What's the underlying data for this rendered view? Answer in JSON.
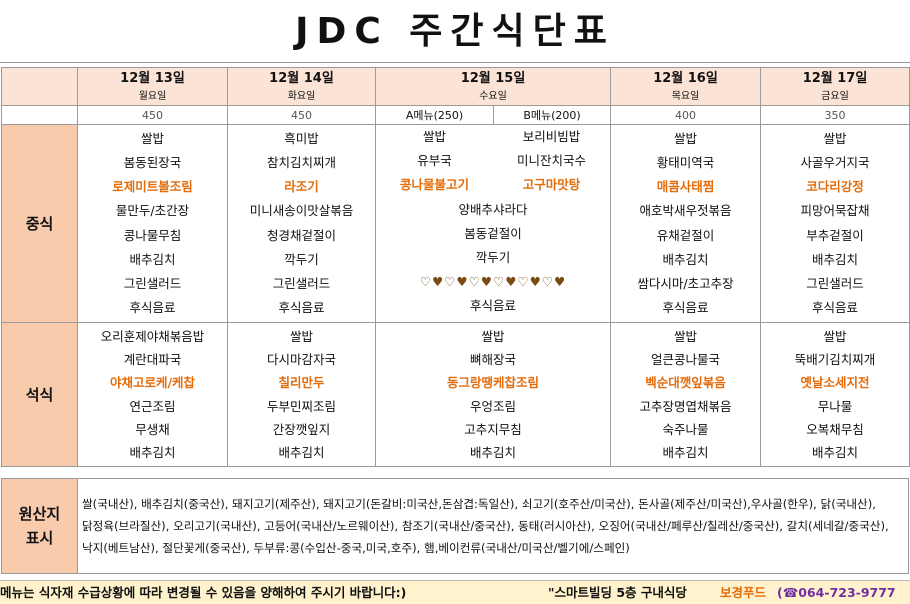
{
  "title": "JDC 주간식단표",
  "days": [
    {
      "date": "12월 13일",
      "dow": "월요일",
      "count": "450"
    },
    {
      "date": "12월 14일",
      "dow": "화요일",
      "count": "450"
    },
    {
      "date": "12월 15일",
      "dow": "수요일",
      "count_a": "A메뉴(250)",
      "count_b": "B메뉴(200)"
    },
    {
      "date": "12월 16일",
      "dow": "목요일",
      "count": "400"
    },
    {
      "date": "12월 17일",
      "dow": "금요일",
      "count": "350"
    }
  ],
  "lunch": {
    "label": "중식",
    "mon": [
      "쌀밥",
      "봄동된장국",
      "로제미트볼조림",
      "물만두/초간장",
      "콩나물무침",
      "배추김치",
      "그린샐러드",
      "후식음료"
    ],
    "tue": [
      "흑미밥",
      "참치김치찌개",
      "라조기",
      "미니새송이맛살볶음",
      "청경채겉절이",
      "깍두기",
      "그린샐러드",
      "후식음료"
    ],
    "wed_a": [
      "쌀밥",
      "유부국",
      "콩나물불고기"
    ],
    "wed_b": [
      "보리비빔밥",
      "미니잔치국수",
      "고구마맛탕"
    ],
    "wed_shared": [
      "양배추샤라다",
      "봄동겉절이",
      "깍두기"
    ],
    "wed_hearts": "♡♥♡♥♡♥♡♥♡♥♡♥",
    "wed_last": "후식음료",
    "thu": [
      "쌀밥",
      "황태미역국",
      "매콤사태찜",
      "애호박새우젓볶음",
      "유채겉절이",
      "배추김치",
      "쌈다시마/초고추장",
      "후식음료"
    ],
    "fri": [
      "쌀밥",
      "사골우거지국",
      "코다리강정",
      "피망어묵잡채",
      "부추겉절이",
      "배추김치",
      "그린샐러드",
      "후식음료"
    ]
  },
  "dinner": {
    "label": "석식",
    "mon": [
      "오리훈제야채볶음밥",
      "계란대파국",
      "야채고로케/케찹",
      "연근조림",
      "무생채",
      "배추김치"
    ],
    "tue": [
      "쌀밥",
      "다시마감자국",
      "칠리만두",
      "두부민찌조림",
      "간장깻잎지",
      "배추김치"
    ],
    "wed": [
      "쌀밥",
      "뼈해장국",
      "동그랑땡케찹조림",
      "우엉조림",
      "고추지무침",
      "배추김치"
    ],
    "thu": [
      "쌀밥",
      "얼큰콩나물국",
      "벡순대깻잎볶음",
      "고추장명엽채볶음",
      "숙주나물",
      "배추김치"
    ],
    "fri": [
      "쌀밥",
      "뚝배기김치찌개",
      "옛날소세지전",
      "무나물",
      "오복채무침",
      "배추김치"
    ]
  },
  "origin": {
    "label_1": "원산지",
    "label_2": "표시",
    "text": "쌀(국내산), 배추김치(중국산), 돼지고기(제주산), 돼지고기(돈갈비:미국산,돈삼겹:독일산), 쇠고기(호주산/미국산), 돈사골(제주산/미국산),우사골(한우), 닭(국내산), 닭정육(브라질산), 오리고기(국내산), 고등어(국내산/노르웨이산), 참조기(국내산/중국산), 동태(러시아산), 오징어(국내산/페루산/칠레산/중국산), 갈치(세네갈/중국산), 낙지(베트남산), 절단꽃게(중국산), 두부류:콩(수입산-중국,미국,호주), 햄,베이컨류(국내산/미국산/벨기에/스페인)"
  },
  "footer": {
    "notice": "메뉴는 식자재 수급상황에 따라  변경될 수 있음을 양해하여 주시기 바랍니다:)",
    "place": "\"스마트빌딩 5층 구내식당",
    "brand": "보경푸드",
    "phone": "(☎064-723-9777"
  }
}
